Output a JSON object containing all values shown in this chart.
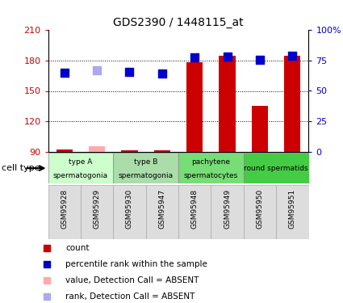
{
  "title": "GDS2390 / 1448115_at",
  "samples": [
    "GSM95928",
    "GSM95929",
    "GSM95930",
    "GSM95947",
    "GSM95948",
    "GSM95949",
    "GSM95950",
    "GSM95951"
  ],
  "bar_values": [
    92,
    95,
    91,
    91,
    178,
    185,
    135,
    185
  ],
  "bar_absent": [
    false,
    true,
    false,
    false,
    false,
    false,
    false,
    false
  ],
  "rank_values": [
    168,
    170,
    169,
    167,
    183,
    184,
    181,
    185
  ],
  "rank_absent": [
    false,
    true,
    false,
    false,
    false,
    false,
    false,
    false
  ],
  "bar_color": "#cc0000",
  "bar_absent_color": "#ffaaaa",
  "rank_color": "#0000cc",
  "rank_absent_color": "#aaaaee",
  "ylim_left": [
    90,
    210
  ],
  "ylim_right": [
    0,
    100
  ],
  "yticks_left": [
    90,
    120,
    150,
    180,
    210
  ],
  "yticks_right": [
    0,
    25,
    50,
    75,
    100
  ],
  "ytick_labels_right": [
    "0",
    "25",
    "50",
    "75",
    "100%"
  ],
  "gridlines": [
    120,
    150,
    180
  ],
  "cell_type_groups": [
    {
      "label": "type A",
      "sublabel": "spermatogonia",
      "start": 0,
      "end": 1,
      "color": "#ccffcc"
    },
    {
      "label": "type B",
      "sublabel": "spermatogonia",
      "start": 2,
      "end": 3,
      "color": "#aaddaa"
    },
    {
      "label": "pachytene",
      "sublabel": "spermatocytes",
      "start": 4,
      "end": 5,
      "color": "#77dd77"
    },
    {
      "label": "round spermatids",
      "sublabel": "",
      "start": 6,
      "end": 7,
      "color": "#44cc44"
    }
  ],
  "bar_width": 0.5,
  "rank_marker_size": 55,
  "legend_items": [
    {
      "label": "count",
      "color": "#cc0000"
    },
    {
      "label": "percentile rank within the sample",
      "color": "#0000cc"
    },
    {
      "label": "value, Detection Call = ABSENT",
      "color": "#ffaaaa"
    },
    {
      "label": "rank, Detection Call = ABSENT",
      "color": "#aaaaee"
    }
  ]
}
